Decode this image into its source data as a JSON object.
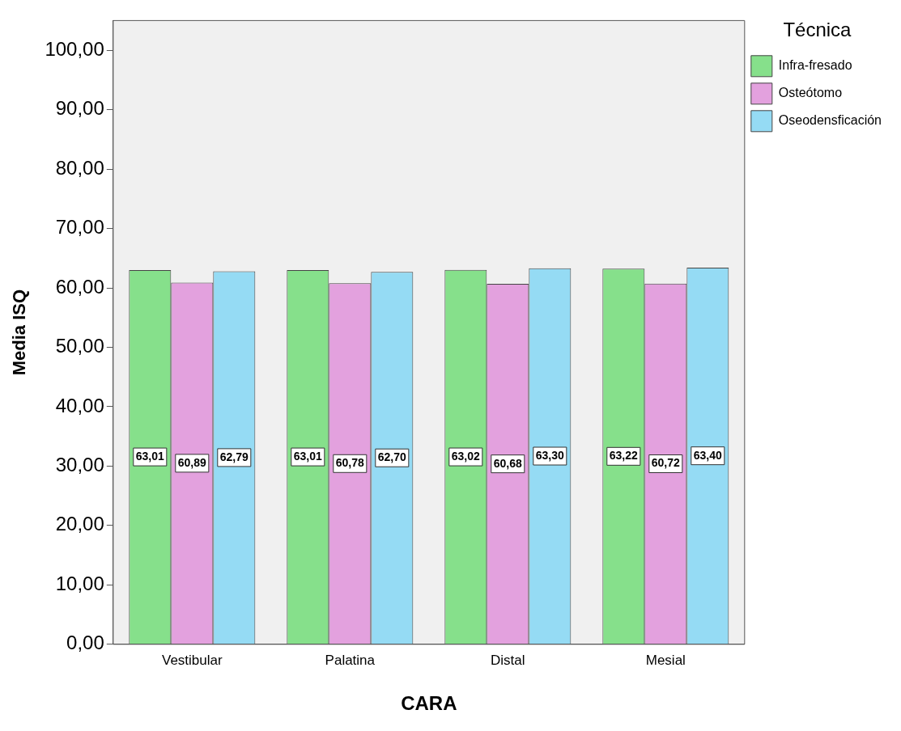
{
  "chart_data": {
    "type": "bar",
    "xlabel": "CARA",
    "ylabel": "Media ISQ",
    "legend_title": "Técnica",
    "legend": "top right",
    "grid": false,
    "categories": [
      "Vestibular",
      "Palatina",
      "Distal",
      "Mesial"
    ],
    "ylim": [
      0,
      105
    ],
    "yticks": [
      {
        "value": 0,
        "label": "0,00"
      },
      {
        "value": 10,
        "label": "10,00"
      },
      {
        "value": 20,
        "label": "20,00"
      },
      {
        "value": 30,
        "label": "30,00"
      },
      {
        "value": 40,
        "label": "40,00"
      },
      {
        "value": 50,
        "label": "50,00"
      },
      {
        "value": 60,
        "label": "60,00"
      },
      {
        "value": 70,
        "label": "70,00"
      },
      {
        "value": 80,
        "label": "80,00"
      },
      {
        "value": 90,
        "label": "90,00"
      },
      {
        "value": 100,
        "label": "100,00"
      }
    ],
    "series": [
      {
        "name": "Infra-fresado",
        "color": "#86e08b",
        "values": [
          63.01,
          63.01,
          63.02,
          63.22
        ],
        "value_labels": [
          "63,01",
          "63,01",
          "63,02",
          "63,22"
        ]
      },
      {
        "name": "Osteótomo",
        "color": "#e3a1de",
        "values": [
          60.89,
          60.78,
          60.68,
          60.72
        ],
        "value_labels": [
          "60,89",
          "60,78",
          "60,68",
          "60,72"
        ]
      },
      {
        "name": "Oseodensficación",
        "color": "#95dbf4",
        "values": [
          62.79,
          62.7,
          63.3,
          63.4
        ],
        "value_labels": [
          "62,79",
          "62,70",
          "63,30",
          "63,40"
        ]
      }
    ]
  }
}
